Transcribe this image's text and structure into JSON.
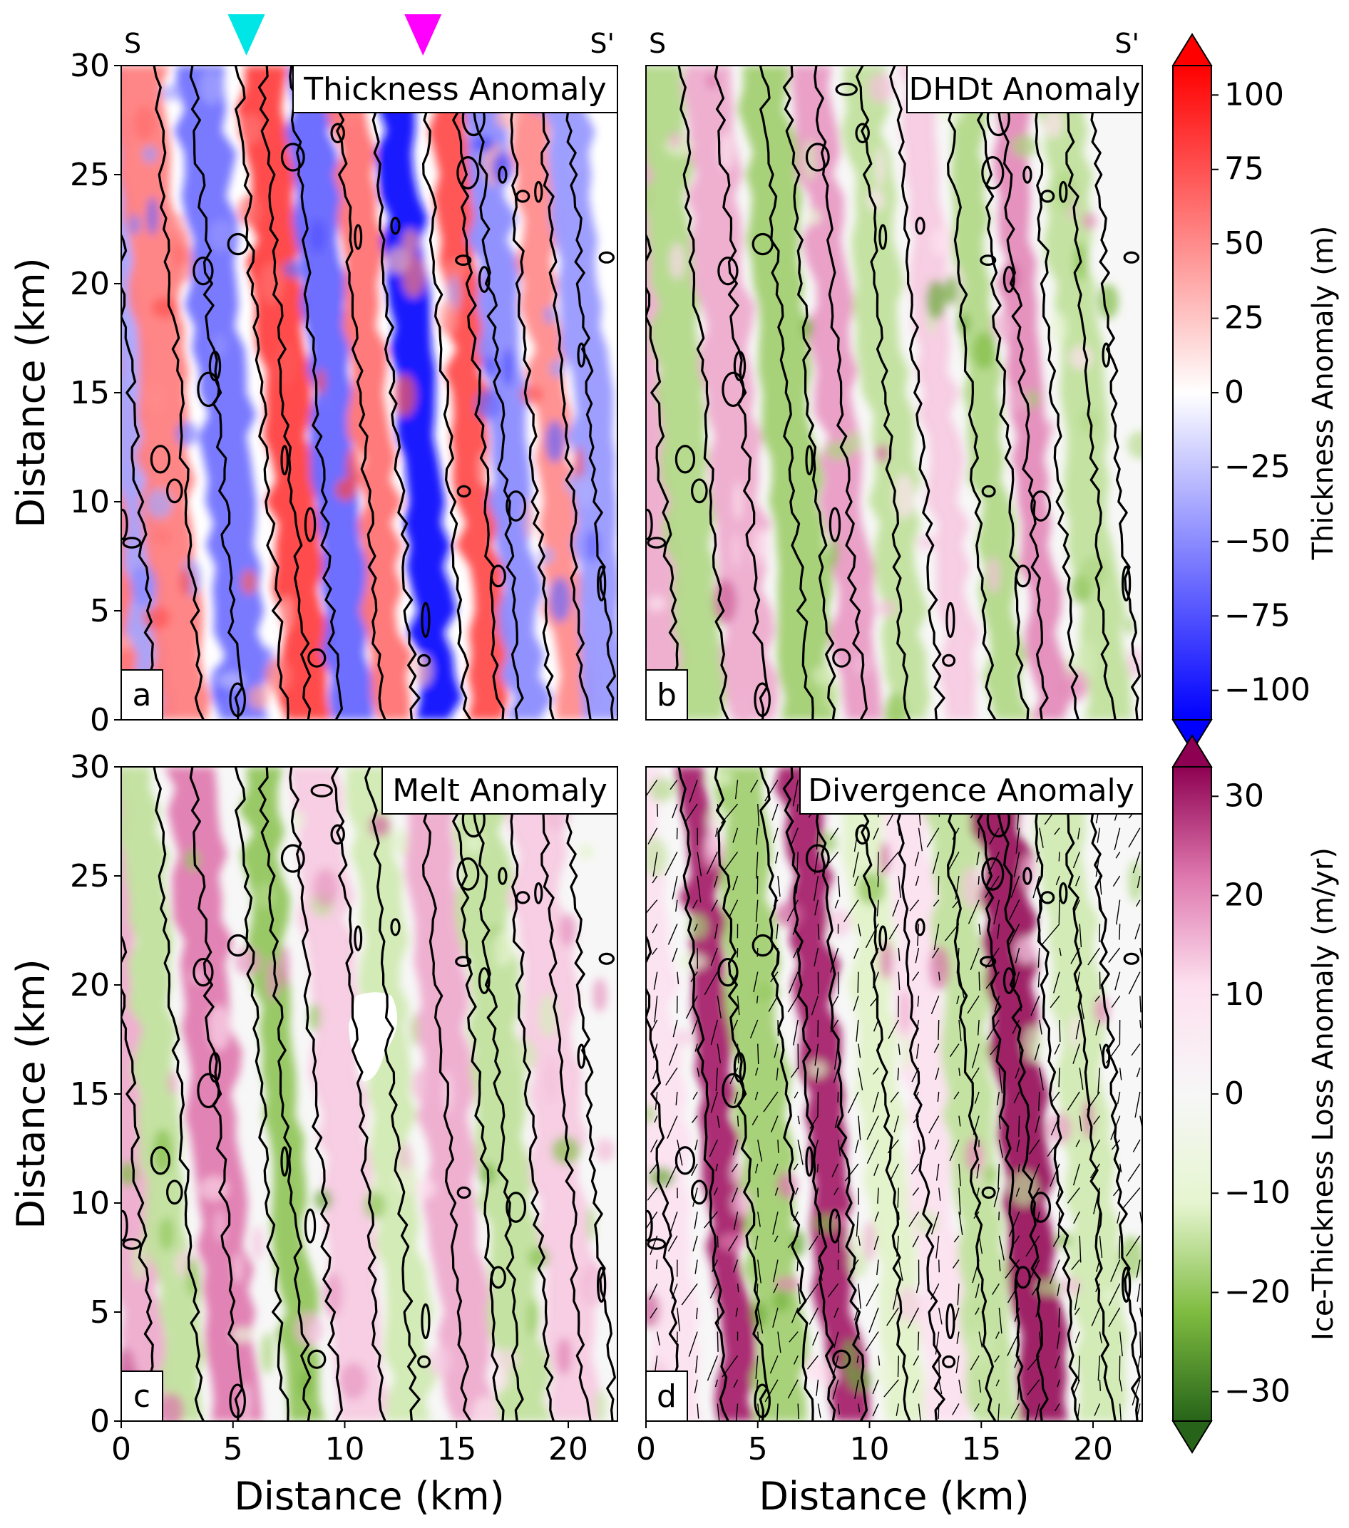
{
  "chart_data": [
    {
      "type": "heatmap",
      "panel": "a",
      "title": "Thickness Anomaly",
      "xlabel": "",
      "ylabel": "Distance (km)",
      "xlim": [
        0,
        22.2
      ],
      "ylim": [
        0,
        30
      ],
      "xticks": [],
      "yticks": [
        "0",
        "5",
        "10",
        "15",
        "20",
        "25",
        "30"
      ],
      "section_labels": [
        "S",
        "S'"
      ],
      "markers": [
        {
          "x": 5.6,
          "color": "#00e5e5"
        },
        {
          "x": 13.5,
          "color": "#ff00ff"
        }
      ],
      "colormap": "bwr",
      "colorbar": "Thickness Anomaly (m)",
      "contours": "zero-anomaly contour",
      "bands": [
        {
          "x": 0.0,
          "sign": 1,
          "amp": 0.55
        },
        {
          "x": 0.9,
          "sign": -1,
          "amp": 0.35
        },
        {
          "x": 2.2,
          "sign": 1,
          "amp": 0.5
        },
        {
          "x": 5.0,
          "sign": -1,
          "amp": 0.55
        },
        {
          "x": 7.8,
          "sign": 1,
          "amp": 0.75
        },
        {
          "x": 9.8,
          "sign": -1,
          "amp": 0.6
        },
        {
          "x": 11.6,
          "sign": 1,
          "amp": 0.55
        },
        {
          "x": 13.6,
          "sign": -1,
          "amp": 0.95
        },
        {
          "x": 16.0,
          "sign": 1,
          "amp": 0.7
        },
        {
          "x": 17.6,
          "sign": -1,
          "amp": 0.45
        },
        {
          "x": 19.6,
          "sign": 1,
          "amp": 0.45
        },
        {
          "x": 21.3,
          "sign": -1,
          "amp": 0.4
        }
      ]
    },
    {
      "type": "heatmap",
      "panel": "b",
      "title": "DHDt Anomaly",
      "xlabel": "",
      "ylabel": "",
      "xlim": [
        0,
        22.2
      ],
      "ylim": [
        0,
        30
      ],
      "xticks": [],
      "yticks": [],
      "section_labels": [
        "S",
        "S'"
      ],
      "colormap": "PiYG-reversed",
      "colorbar": "Ice-Thickness Loss Anomaly (m/yr)",
      "contours": "zero thickness-anomaly contour",
      "bands": [
        {
          "x": 0.3,
          "sign": 1,
          "amp": 0.5
        },
        {
          "x": 2.0,
          "sign": -1,
          "amp": 0.5
        },
        {
          "x": 4.2,
          "sign": 1,
          "amp": 0.5
        },
        {
          "x": 6.8,
          "sign": -1,
          "amp": 0.55
        },
        {
          "x": 9.0,
          "sign": 1,
          "amp": 0.55
        },
        {
          "x": 11.2,
          "sign": -1,
          "amp": 0.45
        },
        {
          "x": 13.6,
          "sign": 1,
          "amp": 0.4
        },
        {
          "x": 15.6,
          "sign": -1,
          "amp": 0.5
        },
        {
          "x": 17.5,
          "sign": 1,
          "amp": 0.6
        },
        {
          "x": 20.0,
          "sign": -1,
          "amp": 0.45
        }
      ]
    },
    {
      "type": "heatmap",
      "panel": "c",
      "title": "Melt Anomaly",
      "xlabel": "Distance (km)",
      "ylabel": "Distance (km)",
      "xlim": [
        0,
        22.2
      ],
      "ylim": [
        0,
        30
      ],
      "xticks": [
        "0",
        "5",
        "10",
        "15",
        "20"
      ],
      "yticks": [
        "0",
        "5",
        "10",
        "15",
        "20",
        "25",
        "30"
      ],
      "colormap": "PiYG-reversed",
      "colorbar": "Ice-Thickness Loss Anomaly (m/yr)",
      "contours": "zero thickness-anomaly contour",
      "bands": [
        {
          "x": 0.6,
          "sign": 1,
          "amp": 0.5
        },
        {
          "x": 2.2,
          "sign": -1,
          "amp": 0.45
        },
        {
          "x": 4.6,
          "sign": 1,
          "amp": 0.65
        },
        {
          "x": 7.6,
          "sign": -1,
          "amp": 0.6
        },
        {
          "x": 10.2,
          "sign": 1,
          "amp": 0.4
        },
        {
          "x": 12.5,
          "sign": -1,
          "amp": 0.4
        },
        {
          "x": 15.0,
          "sign": 1,
          "amp": 0.5
        },
        {
          "x": 17.4,
          "sign": -1,
          "amp": 0.45
        },
        {
          "x": 19.8,
          "sign": 1,
          "amp": 0.4
        }
      ]
    },
    {
      "type": "heatmap",
      "panel": "d",
      "title": "Divergence Anomaly",
      "xlabel": "Distance (km)",
      "ylabel": "",
      "xlim": [
        0,
        22.2
      ],
      "ylim": [
        0,
        30
      ],
      "xticks": [
        "0",
        "5",
        "10",
        "15",
        "20"
      ],
      "yticks": [],
      "colormap": "PiYG-reversed",
      "colorbar": "Ice-Thickness Loss Anomaly (m/yr)",
      "contours": "zero thickness-anomaly contour",
      "vectors": "flux anomaly arrows",
      "bands": [
        {
          "x": 1.0,
          "sign": 1,
          "amp": 0.3
        },
        {
          "x": 3.6,
          "sign": 1,
          "amp": 0.9
        },
        {
          "x": 5.6,
          "sign": -1,
          "amp": 0.55
        },
        {
          "x": 8.4,
          "sign": 1,
          "amp": 0.9
        },
        {
          "x": 11.0,
          "sign": -1,
          "amp": 0.35
        },
        {
          "x": 13.0,
          "sign": 1,
          "amp": 0.3
        },
        {
          "x": 15.0,
          "sign": -1,
          "amp": 0.45
        },
        {
          "x": 17.2,
          "sign": 1,
          "amp": 0.95
        },
        {
          "x": 20.0,
          "sign": -1,
          "amp": 0.4
        }
      ]
    }
  ],
  "colorbars": [
    {
      "label": "Thickness Anomaly (m)",
      "range": [
        -100,
        100
      ],
      "ticks": [
        "100",
        "75",
        "50",
        "25",
        "0",
        "−25",
        "−50",
        "−75",
        "−100"
      ],
      "colors": [
        "#0000ff",
        "#ffffff",
        "#ff0000"
      ]
    },
    {
      "label": "Ice-Thickness Loss Anomaly (m/yr)",
      "range": [
        -30,
        30
      ],
      "ticks": [
        "30",
        "20",
        "10",
        "0",
        "−10",
        "−20",
        "−30"
      ],
      "colors": [
        "#276419",
        "#7fbc41",
        "#e6f5d0",
        "#f7f7f7",
        "#fde0ef",
        "#de77ae",
        "#8e0152"
      ]
    }
  ]
}
